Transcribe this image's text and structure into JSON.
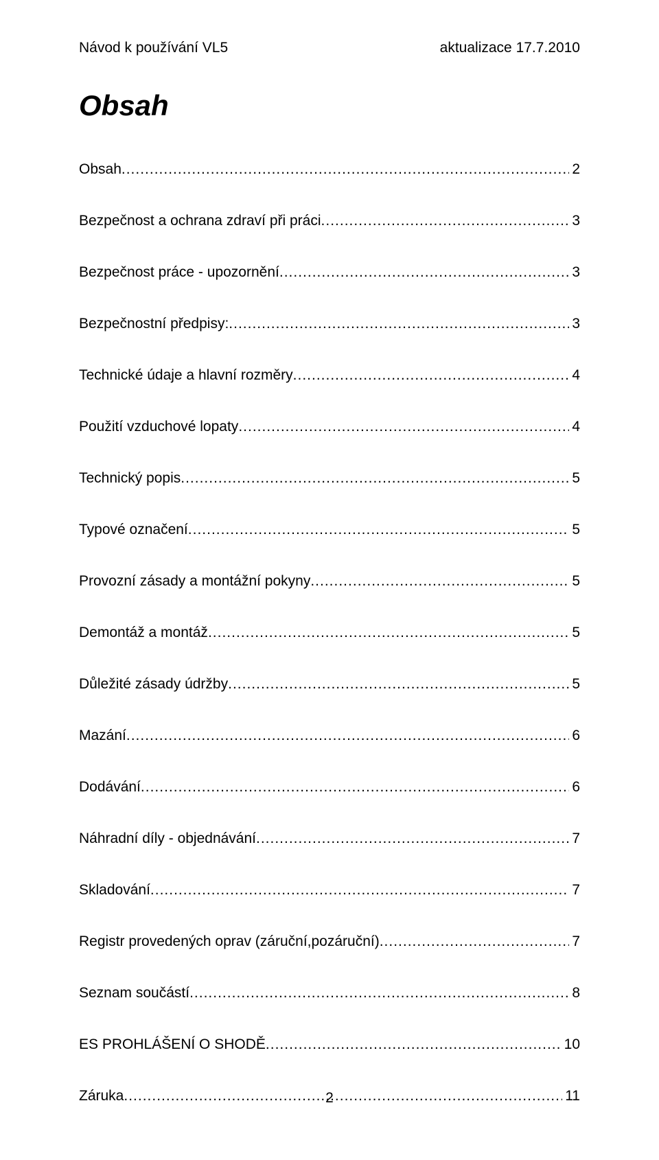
{
  "header": {
    "left": "Návod k používání VL5",
    "right": "aktualizace  17.7.2010"
  },
  "title": "Obsah",
  "toc": [
    {
      "label": "Obsah",
      "page": "2"
    },
    {
      "label": "Bezpečnost a ochrana zdraví při práci",
      "page": "3"
    },
    {
      "label": "Bezpečnost práce - upozornění",
      "page": "3"
    },
    {
      "label": "Bezpečnostní předpisy:",
      "page": "3"
    },
    {
      "label": "Technické údaje a hlavní rozměry",
      "page": "4"
    },
    {
      "label": "Použití vzduchové lopaty",
      "page": "4"
    },
    {
      "label": "Technický popis",
      "page": "5"
    },
    {
      "label": "Typové označení",
      "page": "5"
    },
    {
      "label": "Provozní zásady a montážní pokyny",
      "page": "5"
    },
    {
      "label": "Demontáž a montáž",
      "page": "5"
    },
    {
      "label": "Důležité zásady údržby",
      "page": "5"
    },
    {
      "label": "Mazání",
      "page": "6"
    },
    {
      "label": "Dodávání",
      "page": "6"
    },
    {
      "label": "Náhradní díly - objednávání",
      "page": "7"
    },
    {
      "label": "Skladování",
      "page": "7"
    },
    {
      "label": "Registr  provedených oprav (záruční,pozáruční)",
      "page": "7"
    },
    {
      "label": "Seznam součástí",
      "page": "8"
    },
    {
      "label": "ES   PROHLÁŠENÍ  O  SHODĚ",
      "page": "10"
    },
    {
      "label": "Záruka",
      "page": "11"
    }
  ],
  "page_number": "2"
}
